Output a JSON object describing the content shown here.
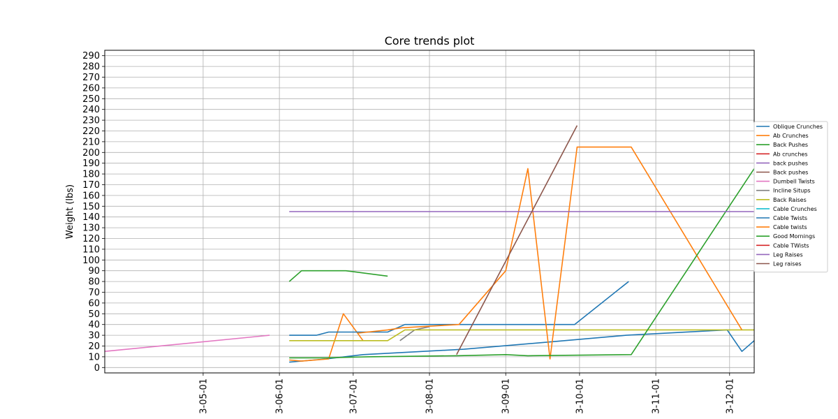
{
  "chart_data": {
    "type": "line",
    "title": "Core trends plot",
    "xlabel": "",
    "ylabel": "Weight (lbs)",
    "ylim": [
      -5,
      295
    ],
    "xlim": [
      "2023-03-22",
      "2023-12-11"
    ],
    "yticks": [
      0,
      10,
      20,
      30,
      40,
      50,
      60,
      70,
      80,
      90,
      100,
      110,
      120,
      130,
      140,
      150,
      160,
      170,
      180,
      190,
      200,
      210,
      220,
      230,
      240,
      250,
      260,
      270,
      280,
      290
    ],
    "xticks": [
      {
        "date": "2023-05-01",
        "label": "3-05-01"
      },
      {
        "date": "2023-06-01",
        "label": "3-06-01"
      },
      {
        "date": "2023-07-01",
        "label": "3-07-01"
      },
      {
        "date": "2023-08-01",
        "label": "3-08-01"
      },
      {
        "date": "2023-09-01",
        "label": "3-09-01"
      },
      {
        "date": "2023-10-01",
        "label": "3-10-01"
      },
      {
        "date": "2023-11-01",
        "label": "3-11-01"
      },
      {
        "date": "2023-12-01",
        "label": "3-12-01"
      }
    ],
    "grid": true,
    "legend_position": "right",
    "series": [
      {
        "name": "Oblique Crunches",
        "color": "#1f77b4",
        "points": [
          [
            "2023-06-05",
            5
          ],
          [
            "2023-06-20",
            8
          ],
          [
            "2023-07-05",
            12
          ],
          [
            "2023-08-15",
            17
          ],
          [
            "2023-09-20",
            24
          ],
          [
            "2023-10-20",
            30
          ],
          [
            "2023-11-30",
            35
          ],
          [
            "2023-12-06",
            15
          ],
          [
            "2023-12-11",
            25
          ]
        ]
      },
      {
        "name": "Ab Crunches",
        "color": "#ff7f0e",
        "points": [
          [
            "2023-06-05",
            7
          ],
          [
            "2023-06-10",
            6
          ],
          [
            "2023-06-21",
            8
          ],
          [
            "2023-06-27",
            50
          ],
          [
            "2023-07-05",
            25
          ]
        ]
      },
      {
        "name": "Back Pushes",
        "color": "#2ca02c",
        "points": [
          [
            "2023-06-05",
            80
          ],
          [
            "2023-06-10",
            90
          ],
          [
            "2023-06-28",
            90
          ],
          [
            "2023-07-15",
            85
          ]
        ]
      },
      {
        "name": "Ab crunches",
        "color": "#d62728",
        "points": []
      },
      {
        "name": "back pushes",
        "color": "#9467bd",
        "points": []
      },
      {
        "name": "Back pushes",
        "color": "#8c564b",
        "points": []
      },
      {
        "name": "Dumbell Twists",
        "color": "#e377c2",
        "points": [
          [
            "2023-03-22",
            15
          ],
          [
            "2023-05-28",
            30
          ]
        ]
      },
      {
        "name": "Incline Situps",
        "color": "#7f7f7f",
        "points": [
          [
            "2023-07-20",
            25
          ],
          [
            "2023-07-26",
            35
          ],
          [
            "2023-08-01",
            38
          ]
        ]
      },
      {
        "name": "Back Raises",
        "color": "#bcbd22",
        "points": [
          [
            "2023-06-05",
            25
          ],
          [
            "2023-07-15",
            25
          ],
          [
            "2023-07-22",
            35
          ],
          [
            "2023-12-11",
            35
          ]
        ]
      },
      {
        "name": "Cable Crunches",
        "color": "#17becf",
        "points": []
      },
      {
        "name": "Cable Twists",
        "color": "#1f77b4",
        "points": [
          [
            "2023-06-05",
            30
          ],
          [
            "2023-06-16",
            30
          ],
          [
            "2023-06-21",
            33
          ],
          [
            "2023-07-15",
            33
          ],
          [
            "2023-07-22",
            40
          ],
          [
            "2023-09-29",
            40
          ],
          [
            "2023-10-21",
            80
          ]
        ]
      },
      {
        "name": "Cable twists",
        "color": "#ff7f0e",
        "points": [
          [
            "2023-07-03",
            32
          ],
          [
            "2023-07-15",
            35
          ],
          [
            "2023-07-21",
            37
          ],
          [
            "2023-08-13",
            40
          ],
          [
            "2023-09-01",
            90
          ],
          [
            "2023-09-10",
            185
          ],
          [
            "2023-09-19",
            8
          ],
          [
            "2023-09-30",
            205
          ],
          [
            "2023-10-22",
            205
          ],
          [
            "2023-12-06",
            35
          ]
        ]
      },
      {
        "name": "Good Mornings",
        "color": "#2ca02c",
        "points": [
          [
            "2023-06-05",
            9
          ],
          [
            "2023-06-20",
            9
          ],
          [
            "2023-07-07",
            10
          ],
          [
            "2023-08-12",
            11
          ],
          [
            "2023-09-01",
            12
          ],
          [
            "2023-09-10",
            11
          ],
          [
            "2023-10-22",
            12
          ],
          [
            "2023-12-11",
            185
          ]
        ]
      },
      {
        "name": "Cable TWists",
        "color": "#d62728",
        "points": []
      },
      {
        "name": "Leg Raises",
        "color": "#9467bd",
        "points": [
          [
            "2023-06-05",
            145
          ],
          [
            "2023-12-11",
            145
          ]
        ]
      },
      {
        "name": "Leg raises",
        "color": "#8c564b",
        "points": [
          [
            "2023-08-12",
            12
          ],
          [
            "2023-09-30",
            225
          ]
        ]
      }
    ]
  }
}
